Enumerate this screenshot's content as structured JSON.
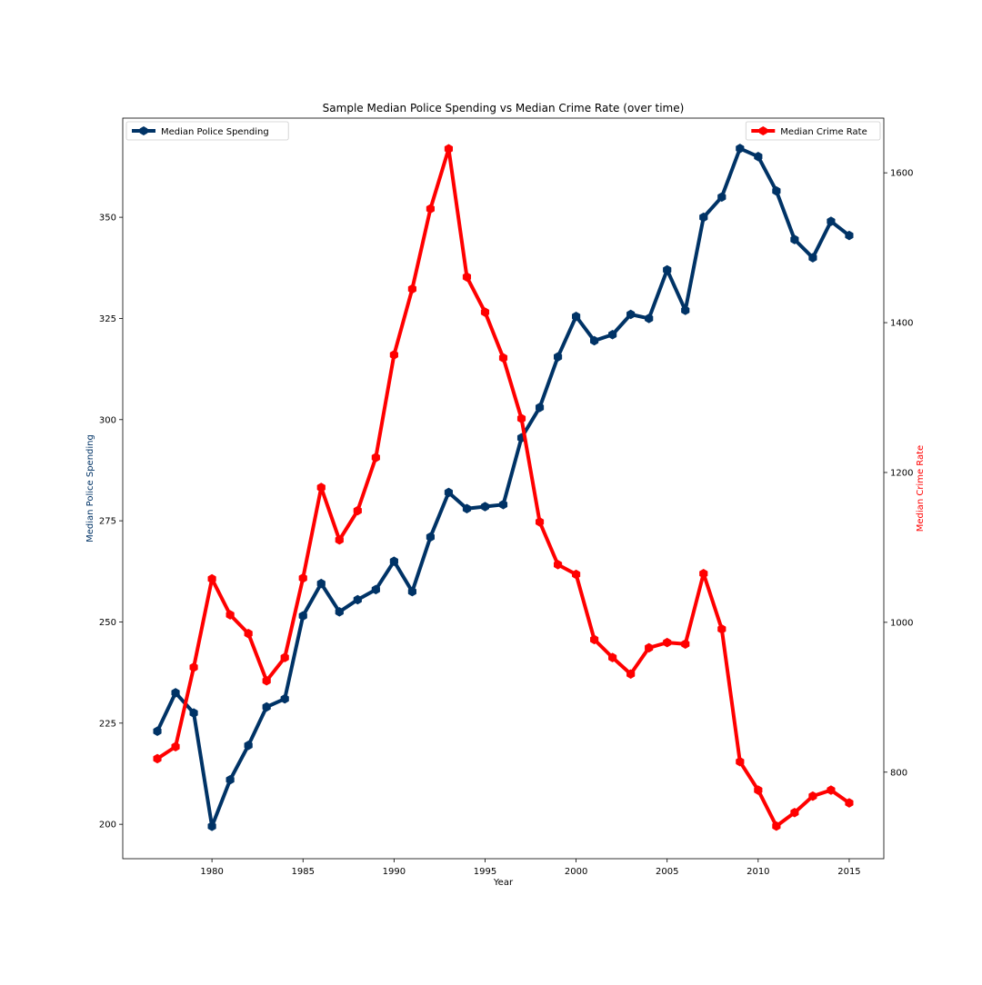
{
  "chart_data": {
    "type": "line",
    "title": "Sample Median Police Spending vs Median Crime Rate (over time)",
    "xlabel": "Year",
    "xlim": [
      1975.1,
      2016.9
    ],
    "xticks": [
      1980,
      1985,
      1990,
      1995,
      2000,
      2005,
      2010,
      2015
    ],
    "x": [
      1977,
      1978,
      1979,
      1980,
      1981,
      1982,
      1983,
      1984,
      1985,
      1986,
      1987,
      1988,
      1989,
      1990,
      1991,
      1992,
      1993,
      1994,
      1995,
      1996,
      1997,
      1998,
      1999,
      2000,
      2001,
      2002,
      2003,
      2004,
      2005,
      2006,
      2007,
      2008,
      2009,
      2010,
      2011,
      2012,
      2013,
      2014,
      2015
    ],
    "left_axis": {
      "label": "Median Police Spending",
      "color": "#003366",
      "ylim": [
        191.5,
        374.5
      ],
      "ticks": [
        200,
        225,
        250,
        275,
        300,
        325,
        350
      ]
    },
    "right_axis": {
      "label": "Median Crime Rate",
      "color": "#ff0000",
      "ylim": [
        684.5,
        1673
      ],
      "ticks": [
        800,
        1000,
        1200,
        1400,
        1600
      ]
    },
    "series": [
      {
        "name": "Median Police Spending",
        "axis": "left",
        "color": "#003366",
        "marker": "hexagon",
        "legend_position": "upper left",
        "values": [
          223,
          232.5,
          227.5,
          199.5,
          211,
          219.5,
          229,
          231,
          251.5,
          259.5,
          252.5,
          255.5,
          258,
          265,
          257.5,
          271,
          282,
          278,
          278.5,
          279,
          295.5,
          303,
          315.5,
          325.5,
          319.5,
          321,
          326,
          325,
          337,
          327,
          350,
          355,
          367,
          365,
          356.5,
          344.5,
          340,
          349,
          345.5
        ]
      },
      {
        "name": "Median Crime Rate",
        "axis": "right",
        "color": "#ff0000",
        "marker": "hexagon",
        "legend_position": "upper right",
        "values": [
          818,
          834,
          940,
          1058,
          1010,
          985,
          922,
          953,
          1059,
          1180,
          1110,
          1149,
          1220,
          1357,
          1445,
          1552,
          1632,
          1461,
          1414,
          1353,
          1272,
          1134,
          1077,
          1064,
          977,
          953,
          931,
          966,
          973,
          971,
          1065,
          991,
          814,
          776,
          728,
          746,
          768,
          776,
          759
        ]
      }
    ]
  }
}
